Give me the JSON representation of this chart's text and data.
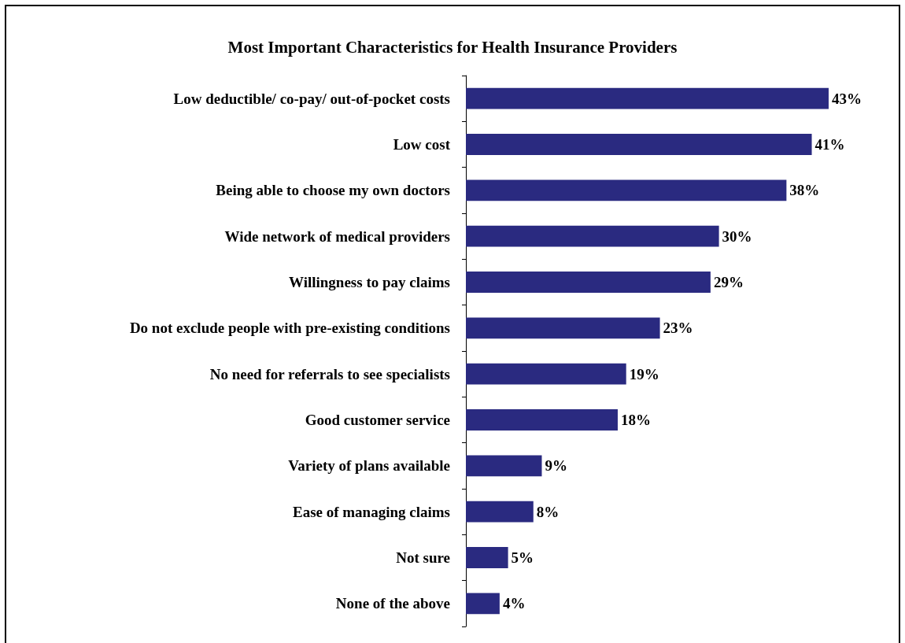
{
  "chart_data": {
    "type": "bar",
    "orientation": "horizontal",
    "title": "Most Important Characteristics for Health Insurance Providers",
    "categories": [
      "Low deductible/ co-pay/ out-of-pocket costs",
      "Low cost",
      "Being able to choose my own doctors",
      "Wide network of medical providers",
      "Willingness to pay claims",
      "Do not exclude people with pre-existing conditions",
      "No need for referrals to see specialists",
      "Good customer service",
      "Variety of plans available",
      "Ease of managing claims",
      "Not sure",
      "None of the above"
    ],
    "values": [
      43,
      41,
      38,
      30,
      29,
      23,
      19,
      18,
      9,
      8,
      5,
      4
    ],
    "value_labels": [
      "43%",
      "41%",
      "38%",
      "30%",
      "29%",
      "23%",
      "19%",
      "18%",
      "9%",
      "8%",
      "5%",
      "4%"
    ],
    "color": "#2a2a80"
  }
}
